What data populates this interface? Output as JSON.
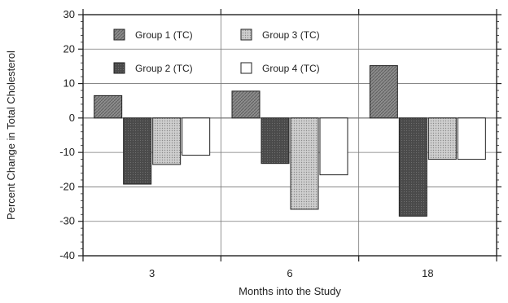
{
  "chart_data": {
    "type": "bar",
    "title": "",
    "xlabel": "Months into the Study",
    "ylabel": "Percent Change in Total Cholesterol",
    "categories": [
      "3",
      "6",
      "18"
    ],
    "ylim": [
      -40,
      30
    ],
    "yticks": [
      -40,
      -30,
      -20,
      -10,
      0,
      10,
      20,
      30
    ],
    "grid": true,
    "legend_position": "top-left",
    "series": [
      {
        "name": "Group 1 (TC)",
        "values": [
          6.5,
          7.8,
          15.2
        ],
        "pattern": "hatched-gray"
      },
      {
        "name": "Group 2 (TC)",
        "values": [
          -19.2,
          -13.2,
          -28.5
        ],
        "pattern": "dark-dotted"
      },
      {
        "name": "Group 3 (TC)",
        "values": [
          -13.5,
          -26.5,
          -12.0
        ],
        "pattern": "light-dotted"
      },
      {
        "name": "Group 4 (TC)",
        "values": [
          -10.8,
          -16.5,
          -12.0
        ],
        "pattern": "white"
      }
    ]
  }
}
